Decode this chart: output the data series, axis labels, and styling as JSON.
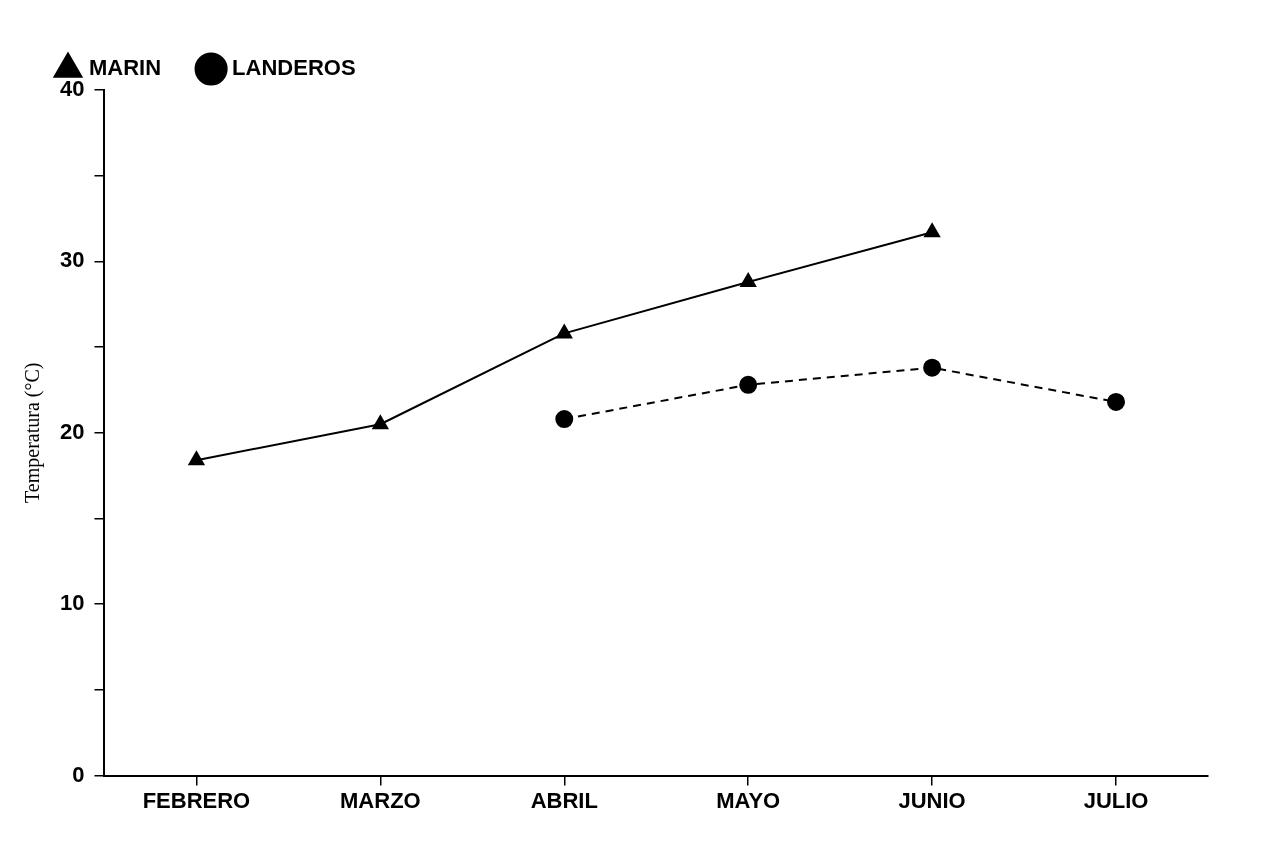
{
  "chart_data": {
    "type": "line",
    "ylabel": "Temperatura (°C)",
    "categories": [
      "FEBRERO",
      "MARZO",
      "ABRIL",
      "MAYO",
      "JUNIO",
      "JULIO"
    ],
    "series": [
      {
        "name": "MARIN",
        "color": "#000000",
        "marker": "triangle",
        "line_style": "solid",
        "values": [
          18.4,
          20.5,
          25.8,
          28.8,
          31.7,
          null
        ]
      },
      {
        "name": "LANDEROS",
        "color": "#000000",
        "marker": "circle",
        "line_style": "dashed",
        "values": [
          null,
          null,
          20.8,
          22.8,
          23.8,
          21.8
        ]
      }
    ],
    "ylim": [
      0,
      40
    ],
    "yticks": [
      0,
      {
        "value": 5,
        "label": null
      },
      10,
      {
        "value": 15,
        "label": null
      },
      20,
      {
        "value": 25,
        "label": null
      },
      30,
      {
        "value": 35,
        "label": null
      },
      40
    ],
    "grid": false,
    "legend": "top"
  }
}
